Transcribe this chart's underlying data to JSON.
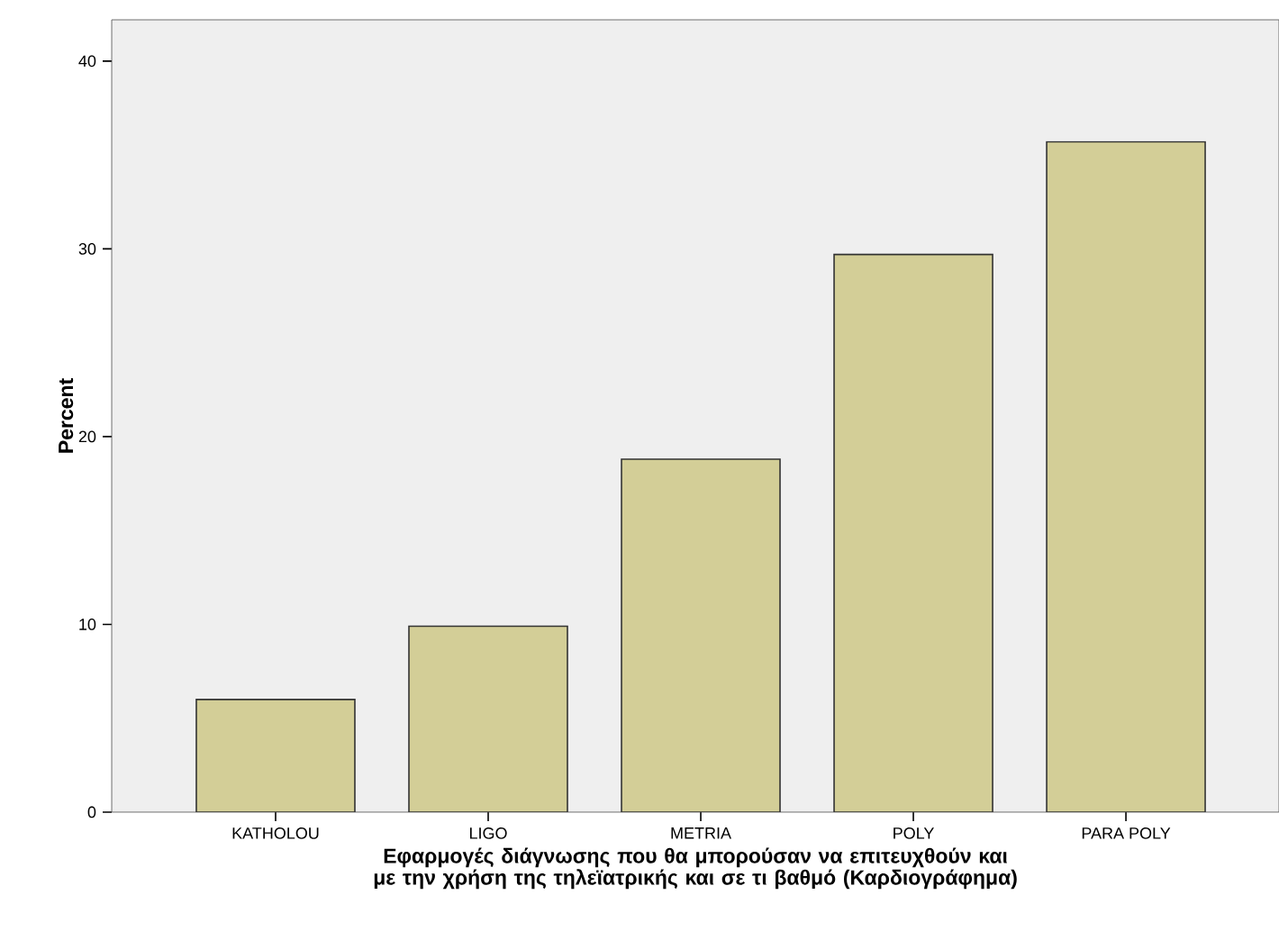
{
  "chart_data": {
    "type": "bar",
    "xlabel": "Εφαρμογές διάγνωσης που θα μπορούσαν να επιτευχθούν και με την χρήση της τηλεϊατρικής και σε τι βαθμό (Καρδιογράφημα)",
    "ylabel": "Percent",
    "categories": [
      "KATHOLOU",
      "LIGO",
      "METRIA",
      "POLY",
      "PARA POLY"
    ],
    "values": [
      6.0,
      9.9,
      18.8,
      29.7,
      35.7
    ],
    "color": "#d3ce97",
    "ylim": [
      0,
      42.2
    ],
    "yticks": [
      0,
      10,
      20,
      30,
      40
    ],
    "grid": false
  }
}
